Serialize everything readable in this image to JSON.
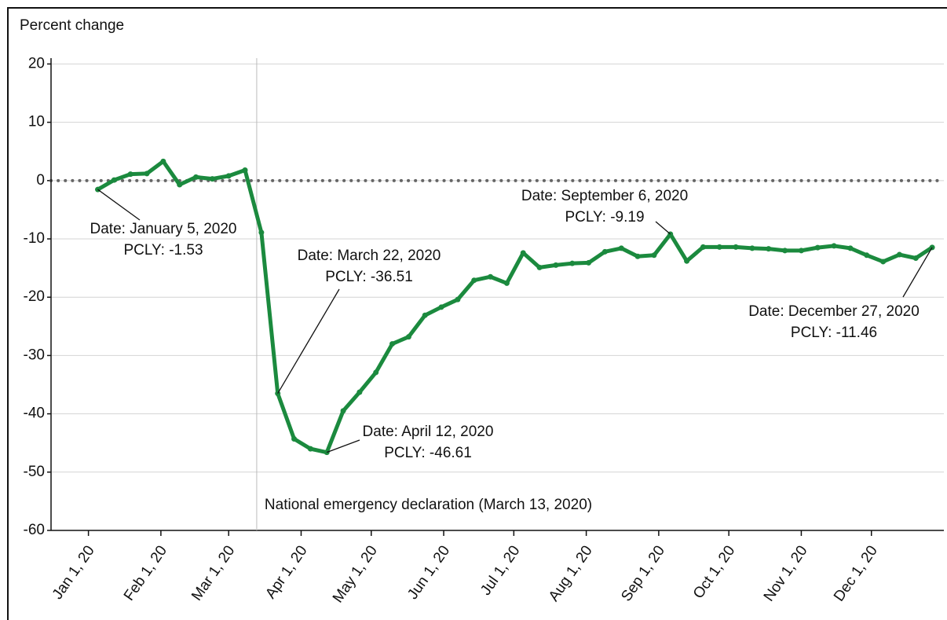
{
  "chart_data": {
    "type": "line",
    "y_label": "Percent change",
    "x": [
      "2020-01-05",
      "2020-01-12",
      "2020-01-19",
      "2020-01-26",
      "2020-02-02",
      "2020-02-09",
      "2020-02-16",
      "2020-02-23",
      "2020-03-01",
      "2020-03-08",
      "2020-03-15",
      "2020-03-22",
      "2020-03-29",
      "2020-04-05",
      "2020-04-12",
      "2020-04-19",
      "2020-04-26",
      "2020-05-03",
      "2020-05-10",
      "2020-05-17",
      "2020-05-24",
      "2020-05-31",
      "2020-06-07",
      "2020-06-14",
      "2020-06-21",
      "2020-06-28",
      "2020-07-05",
      "2020-07-12",
      "2020-07-19",
      "2020-07-26",
      "2020-08-02",
      "2020-08-09",
      "2020-08-16",
      "2020-08-23",
      "2020-08-30",
      "2020-09-06",
      "2020-09-13",
      "2020-09-20",
      "2020-09-27",
      "2020-10-04",
      "2020-10-11",
      "2020-10-18",
      "2020-10-25",
      "2020-11-01",
      "2020-11-08",
      "2020-11-15",
      "2020-11-22",
      "2020-11-29",
      "2020-12-06",
      "2020-12-13",
      "2020-12-20",
      "2020-12-27"
    ],
    "series": [
      {
        "name": "PCLY",
        "color": "#1b8a3e",
        "values": [
          -1.53,
          0.1,
          1.1,
          1.2,
          3.3,
          -0.7,
          0.6,
          0.3,
          0.8,
          1.8,
          -8.9,
          -36.51,
          -44.3,
          -46.0,
          -46.61,
          -39.5,
          -36.3,
          -32.9,
          -28.0,
          -26.8,
          -23.1,
          -21.7,
          -20.4,
          -17.1,
          -16.5,
          -17.6,
          -12.4,
          -14.9,
          -14.5,
          -14.2,
          -14.1,
          -12.2,
          -11.6,
          -13.0,
          -12.8,
          -9.19,
          -13.8,
          -11.4,
          -11.4,
          -11.4,
          -11.6,
          -11.7,
          -12.0,
          -12.0,
          -11.5,
          -11.2,
          -11.6,
          -12.8,
          -13.9,
          -12.7,
          -13.3,
          -11.46
        ]
      }
    ],
    "xlim": [
      "2019-12-16",
      "2021-01-01"
    ],
    "xticks": [
      {
        "value": "2020-01-01",
        "label": "Jan 1, 20"
      },
      {
        "value": "2020-02-01",
        "label": "Feb 1, 20"
      },
      {
        "value": "2020-03-01",
        "label": "Mar 1, 20"
      },
      {
        "value": "2020-04-01",
        "label": "Apr 1, 20"
      },
      {
        "value": "2020-05-01",
        "label": "May 1, 20"
      },
      {
        "value": "2020-06-01",
        "label": "Jun 1, 20"
      },
      {
        "value": "2020-07-01",
        "label": "Jul 1, 20"
      },
      {
        "value": "2020-08-01",
        "label": "Aug 1, 20"
      },
      {
        "value": "2020-09-01",
        "label": "Sep 1, 20"
      },
      {
        "value": "2020-10-01",
        "label": "Oct 1, 20"
      },
      {
        "value": "2020-11-01",
        "label": "Nov 1, 20"
      },
      {
        "value": "2020-12-01",
        "label": "Dec 1, 20"
      }
    ],
    "ylim": [
      -60,
      21
    ],
    "yticks": [
      -60,
      -50,
      -40,
      -30,
      -20,
      -10,
      0,
      10,
      20
    ],
    "grid": true,
    "event": {
      "x": "2020-03-13",
      "label": "National emergency declaration (March 13, 2020)"
    },
    "annotations": [
      {
        "text": [
          "Date: January 5, 2020",
          "PCLY: -1.53"
        ]
      },
      {
        "text": [
          "Date: March 22, 2020",
          "PCLY: -36.51"
        ]
      },
      {
        "text": [
          "Date: April 12, 2020",
          "PCLY: -46.61"
        ]
      },
      {
        "text": [
          "Date: September 6, 2020",
          "PCLY: -9.19"
        ]
      },
      {
        "text": [
          "Date: December 27, 2020",
          "PCLY: -11.46"
        ]
      }
    ]
  }
}
